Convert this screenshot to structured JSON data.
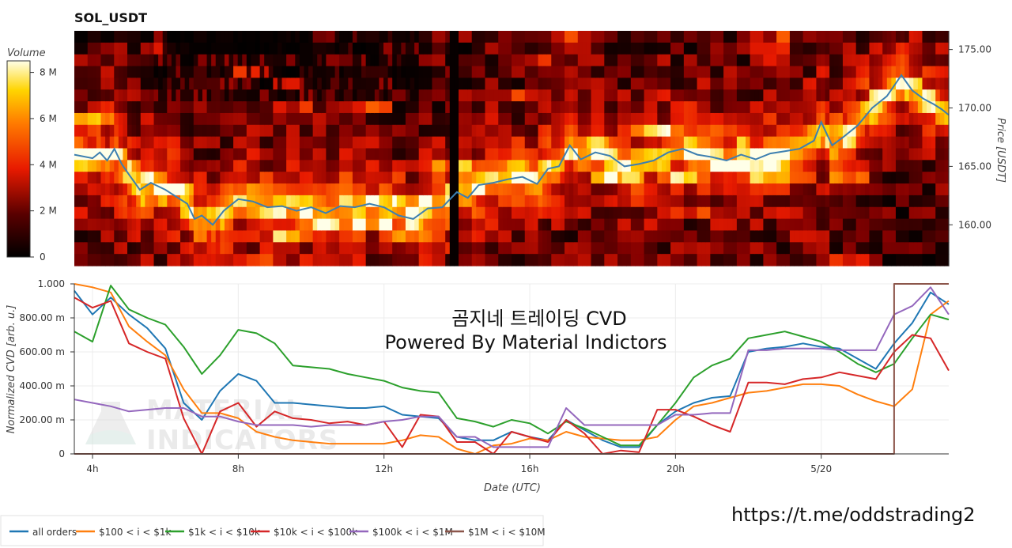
{
  "chart_data": [
    {
      "type": "heatmap",
      "title": "SOL_USDT",
      "ylabel": "Price [USDT]",
      "yticks": [
        "160.00",
        "165.00",
        "170.00",
        "175.00"
      ],
      "ytick_values": [
        160,
        165,
        170,
        175
      ],
      "ylim": [
        156.5,
        176.6
      ],
      "colorbar": {
        "label": "Volume",
        "ticks": [
          "0",
          "2 M",
          "4 M",
          "6 M",
          "8 M"
        ],
        "tick_values": [
          0,
          2,
          4,
          6,
          8
        ],
        "max": 8.5
      },
      "colors": {
        "high": "#ffffe8",
        "mid": "#ffbf00",
        "low": "#e81a00",
        "dark": "#3a0000",
        "zero": "#000000"
      },
      "price_line": {
        "color": "#3d7fb0",
        "x_hours": [
          3.5,
          4.0,
          4.2,
          4.4,
          4.6,
          4.8,
          5.0,
          5.3,
          5.6,
          6.0,
          6.3,
          6.6,
          6.8,
          7.0,
          7.3,
          7.6,
          8.0,
          8.4,
          8.8,
          9.2,
          9.6,
          10.0,
          10.4,
          10.8,
          11.2,
          11.6,
          12.0,
          12.4,
          12.8,
          13.2,
          13.6,
          14.0,
          14.3,
          14.6,
          15.0,
          15.4,
          15.8,
          16.2,
          16.5,
          16.8,
          17.1,
          17.4,
          17.8,
          18.2,
          18.6,
          19.0,
          19.4,
          19.8,
          20.2,
          20.6,
          21.0,
          21.4,
          21.8,
          22.2,
          22.6,
          23.0,
          23.4,
          23.8,
          24.0,
          24.3,
          24.6,
          25.0,
          25.4,
          25.8,
          26.2,
          26.5,
          26.8,
          27.1,
          27.3,
          27.5
        ],
        "price": [
          166.0,
          165.7,
          166.2,
          165.5,
          166.5,
          165.2,
          164.3,
          163.0,
          163.6,
          163.0,
          162.4,
          161.8,
          160.5,
          160.8,
          160.0,
          161.2,
          162.2,
          162.0,
          161.5,
          161.6,
          161.2,
          161.5,
          161.0,
          161.6,
          161.5,
          161.8,
          161.5,
          160.8,
          160.5,
          161.4,
          161.5,
          162.8,
          162.3,
          163.4,
          163.6,
          163.9,
          164.1,
          163.5,
          164.8,
          165.0,
          166.8,
          165.6,
          166.2,
          165.9,
          165.0,
          165.2,
          165.5,
          166.2,
          166.5,
          166.0,
          165.8,
          165.5,
          166.0,
          165.6,
          166.1,
          166.3,
          166.5,
          167.2,
          168.8,
          166.8,
          167.5,
          168.5,
          170.0,
          171.0,
          172.8,
          171.5,
          170.8,
          170.3,
          169.9,
          169.4
        ]
      }
    },
    {
      "type": "line",
      "ylabel": "Normalized CVD [arb. u.]",
      "xlabel": "Date (UTC)",
      "ylim": [
        0,
        1
      ],
      "xlim_hours": [
        3.5,
        27.5
      ],
      "xticks": [
        "4h",
        "8h",
        "12h",
        "16h",
        "20h",
        "5/20"
      ],
      "xtick_hours": [
        4,
        8,
        12,
        16,
        20,
        24
      ],
      "yticks": [
        "0",
        "200.00 m",
        "400.00 m",
        "600.00 m",
        "800.00 m",
        "1.000"
      ],
      "ytick_values": [
        0,
        0.2,
        0.4,
        0.6,
        0.8,
        1.0
      ],
      "grid": true,
      "legend_position": "bottom-left",
      "x": [
        3.5,
        4.0,
        4.5,
        5.0,
        5.5,
        6.0,
        6.5,
        7.0,
        7.5,
        8.0,
        8.5,
        9.0,
        9.5,
        10.0,
        10.5,
        11.0,
        11.5,
        12.0,
        12.5,
        13.0,
        13.5,
        14.0,
        14.5,
        15.0,
        15.5,
        16.0,
        16.5,
        17.0,
        17.5,
        18.0,
        18.5,
        19.0,
        19.5,
        20.0,
        20.5,
        21.0,
        21.5,
        22.0,
        22.5,
        23.0,
        23.5,
        24.0,
        24.5,
        25.0,
        25.5,
        26.0,
        26.5,
        27.0,
        27.5
      ],
      "series": [
        {
          "name": "all orders",
          "color": "#1f77b4",
          "values": [
            0.96,
            0.82,
            0.92,
            0.82,
            0.74,
            0.62,
            0.3,
            0.2,
            0.37,
            0.47,
            0.43,
            0.3,
            0.3,
            0.29,
            0.28,
            0.27,
            0.27,
            0.28,
            0.23,
            0.22,
            0.21,
            0.1,
            0.08,
            0.08,
            0.13,
            0.1,
            0.08,
            0.2,
            0.14,
            0.08,
            0.04,
            0.04,
            0.17,
            0.25,
            0.3,
            0.33,
            0.34,
            0.6,
            0.62,
            0.63,
            0.65,
            0.63,
            0.62,
            0.56,
            0.5,
            0.65,
            0.77,
            0.95,
            0.88
          ]
        },
        {
          "name": "$100 < i < $1k",
          "color": "#ff7f0e",
          "values": [
            1.0,
            0.98,
            0.95,
            0.75,
            0.66,
            0.58,
            0.38,
            0.24,
            0.24,
            0.21,
            0.13,
            0.1,
            0.08,
            0.07,
            0.06,
            0.06,
            0.06,
            0.06,
            0.08,
            0.11,
            0.1,
            0.03,
            0.0,
            0.05,
            0.06,
            0.09,
            0.08,
            0.13,
            0.1,
            0.09,
            0.08,
            0.08,
            0.1,
            0.2,
            0.28,
            0.3,
            0.33,
            0.36,
            0.37,
            0.39,
            0.41,
            0.41,
            0.4,
            0.35,
            0.31,
            0.28,
            0.38,
            0.82,
            0.9
          ]
        },
        {
          "name": "$1k < i < $10k",
          "color": "#2ca02c",
          "values": [
            0.72,
            0.66,
            0.99,
            0.85,
            0.8,
            0.76,
            0.63,
            0.47,
            0.58,
            0.73,
            0.71,
            0.65,
            0.52,
            0.51,
            0.5,
            0.47,
            0.45,
            0.43,
            0.39,
            0.37,
            0.36,
            0.21,
            0.19,
            0.16,
            0.2,
            0.18,
            0.12,
            0.19,
            0.15,
            0.1,
            0.05,
            0.05,
            0.17,
            0.3,
            0.45,
            0.52,
            0.56,
            0.68,
            0.7,
            0.72,
            0.69,
            0.66,
            0.6,
            0.53,
            0.48,
            0.53,
            0.68,
            0.82,
            0.79
          ]
        },
        {
          "name": "$10k < i < $100k",
          "color": "#d62728",
          "values": [
            0.92,
            0.86,
            0.9,
            0.65,
            0.6,
            0.56,
            0.21,
            0.0,
            0.25,
            0.3,
            0.16,
            0.25,
            0.21,
            0.2,
            0.18,
            0.19,
            0.17,
            0.19,
            0.04,
            0.23,
            0.22,
            0.07,
            0.07,
            0.0,
            0.13,
            0.1,
            0.07,
            0.2,
            0.12,
            0.0,
            0.02,
            0.01,
            0.26,
            0.26,
            0.22,
            0.17,
            0.13,
            0.42,
            0.42,
            0.41,
            0.44,
            0.45,
            0.48,
            0.46,
            0.44,
            0.6,
            0.7,
            0.68,
            0.49
          ]
        },
        {
          "name": "$100k < i < $1M",
          "color": "#9467bd",
          "values": [
            0.32,
            0.3,
            0.28,
            0.25,
            0.26,
            0.27,
            0.27,
            0.22,
            0.22,
            0.19,
            0.17,
            0.17,
            0.17,
            0.16,
            0.17,
            0.17,
            0.17,
            0.19,
            0.2,
            0.22,
            0.22,
            0.1,
            0.1,
            0.04,
            0.04,
            0.04,
            0.04,
            0.27,
            0.17,
            0.17,
            0.17,
            0.17,
            0.17,
            0.23,
            0.23,
            0.24,
            0.24,
            0.61,
            0.61,
            0.62,
            0.62,
            0.62,
            0.61,
            0.61,
            0.61,
            0.82,
            0.87,
            0.98,
            0.82
          ]
        },
        {
          "name": "$1M < i < $10M",
          "color": "#8c564b",
          "values": [
            0,
            0,
            0,
            0,
            0,
            0,
            0,
            0,
            0,
            0,
            0,
            0,
            0,
            0,
            0,
            0,
            0,
            0,
            0,
            0,
            0,
            0,
            0,
            0,
            0,
            0,
            0,
            0,
            0,
            0,
            0,
            0,
            0,
            0,
            0,
            0,
            0,
            0,
            0,
            0,
            0,
            0,
            0,
            0,
            0,
            1.0,
            1.0,
            1.0,
            1.0
          ]
        }
      ]
    }
  ],
  "overlay": {
    "line1": "곰지네 트레이딩 CVD",
    "line2": "Powered By Material Indictors"
  },
  "watermark": {
    "line1": "MATERIAL",
    "line2": "INDICATORS"
  },
  "footer_url": "https://t.me/oddstrading2"
}
